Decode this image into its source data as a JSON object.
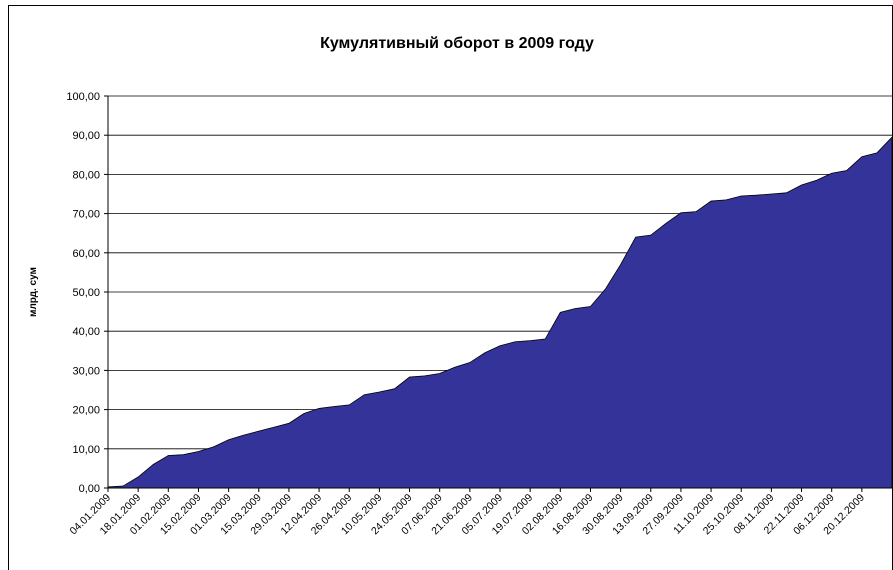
{
  "chart_data": {
    "type": "area",
    "title": "Кумулятивный оборот в 2009 году",
    "y_label": "млрд. сум",
    "categories": [
      "04.01.2009",
      null,
      "18.01.2009",
      null,
      "01.02.2009",
      null,
      "15.02.2009",
      null,
      "01.03.2009",
      null,
      "15.03.2009",
      null,
      "29.03.2009",
      null,
      "12.04.2009",
      null,
      "26.04.2009",
      null,
      "10.05.2009",
      null,
      "24.05.2009",
      null,
      "07.06.2009",
      null,
      "21.06.2009",
      null,
      "05.07.2009",
      null,
      "19.07.2009",
      null,
      "02.08.2009",
      null,
      "16.08.2009",
      null,
      "30.08.2009",
      null,
      "13.09.2009",
      null,
      "27.09.2009",
      null,
      "11.10.2009",
      null,
      "25.10.2009",
      null,
      "08.11.2009",
      null,
      "22.11.2009",
      null,
      "06.12.2009",
      null,
      "20.12.2009",
      null,
      null
    ],
    "values": [
      0.3,
      0.5,
      2.8,
      6.0,
      8.3,
      8.5,
      9.3,
      10.5,
      12.3,
      13.5,
      14.5,
      15.5,
      16.5,
      19.0,
      20.3,
      20.8,
      21.2,
      23.8,
      24.5,
      25.3,
      28.3,
      28.6,
      29.2,
      30.8,
      32.0,
      34.5,
      36.3,
      37.3,
      37.6,
      38.0,
      44.8,
      45.8,
      46.3,
      50.8,
      57.0,
      64.0,
      64.5,
      67.5,
      70.2,
      70.5,
      73.2,
      73.5,
      74.5,
      74.7,
      75.0,
      75.3,
      77.3,
      78.5,
      80.3,
      81.0,
      84.5,
      85.5,
      89.5
    ],
    "color": "#333399",
    "ylim": [
      0,
      100
    ],
    "yticks": [
      {
        "value": 0,
        "label": "0,00"
      },
      {
        "value": 10,
        "label": "10,00"
      },
      {
        "value": 20,
        "label": "20,00"
      },
      {
        "value": 30,
        "label": "30,00"
      },
      {
        "value": 40,
        "label": "40,00"
      },
      {
        "value": 50,
        "label": "50,00"
      },
      {
        "value": 60,
        "label": "60,00"
      },
      {
        "value": 70,
        "label": "70,00"
      },
      {
        "value": 80,
        "label": "80,00"
      },
      {
        "value": 90,
        "label": "90,00"
      },
      {
        "value": 100,
        "label": "100,00"
      }
    ],
    "grid": true
  }
}
